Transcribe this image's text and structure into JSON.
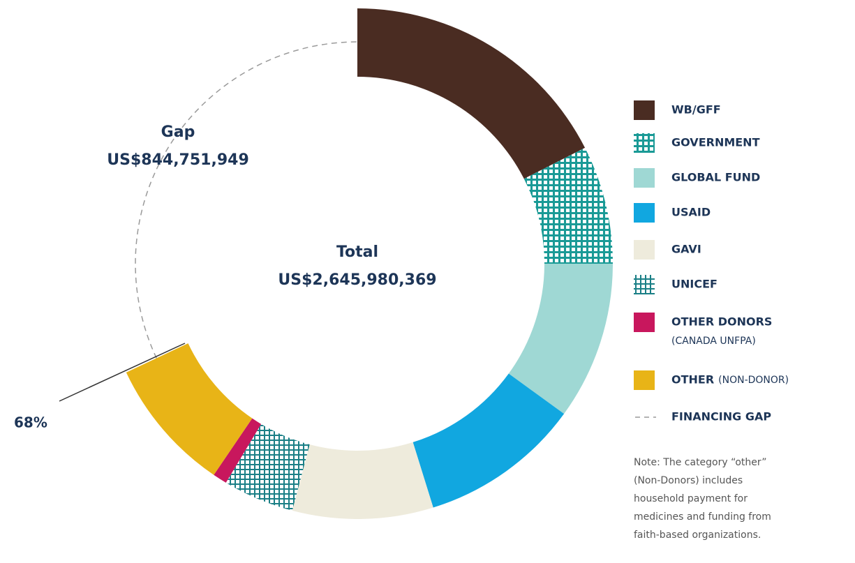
{
  "chart_data": {
    "type": "donut",
    "series": [
      {
        "name": "WB/GFF",
        "color": "#4a2c22",
        "value": 17.5
      },
      {
        "name": "GOVERNMENT",
        "color": "#1a9a96",
        "value": 7.5,
        "pattern": true
      },
      {
        "name": "GLOBAL FUND",
        "color": "#9fd8d4",
        "value": 10
      },
      {
        "name": "USAID",
        "color": "#11a7e0",
        "value": 10.2
      },
      {
        "name": "GAVI",
        "color": "#eeebdc",
        "value": 8.9
      },
      {
        "name": "UNICEF",
        "color": "#1a7f86",
        "value": 4.5,
        "pattern": true
      },
      {
        "name": "OTHER DONORS",
        "sublabel": "(CANADA UNFPA)",
        "color": "#c8175d",
        "value": 0.9
      },
      {
        "name": "OTHER",
        "sublabel": "(NON-DONOR)",
        "color": "#e8b417",
        "value": 8.5
      }
    ],
    "gap": {
      "name": "FINANCING GAP",
      "value": 32,
      "color": "#9a9a9a",
      "label": "Gap",
      "amount": "US$844,751,949"
    },
    "center_label": "Total",
    "center_amount": "US$2,645,980,369",
    "funded_label": "68%",
    "note": [
      "Note: The category “other”",
      "(Non-Donors) includes",
      "household payment for",
      "medicines and funding from",
      "faith-based organizations."
    ]
  }
}
